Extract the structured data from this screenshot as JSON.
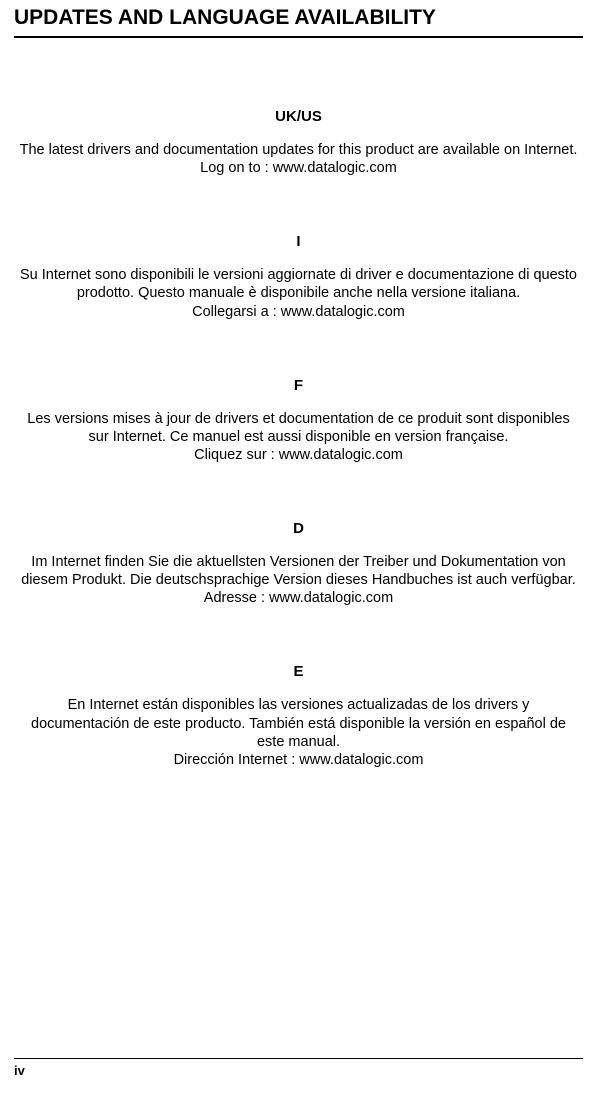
{
  "page": {
    "title": "UPDATES AND LANGUAGE AVAILABILITY",
    "number": "iv"
  },
  "sections": [
    {
      "code": "UK/US",
      "text": "The latest drivers and documentation updates for this product are available on Internet.",
      "action": "Log on to : www.datalogic.com"
    },
    {
      "code": "I",
      "text": "Su Internet sono disponibili le versioni aggiornate di driver e documentazione di questo prodotto. Questo manuale è disponibile anche nella versione italiana.",
      "action": "Collegarsi a : www.datalogic.com"
    },
    {
      "code": "F",
      "text": "Les versions mises à jour de drivers et documentation de ce produit sont disponibles sur Internet. Ce manuel est aussi disponible en version française.",
      "action": "Cliquez sur : www.datalogic.com"
    },
    {
      "code": "D",
      "text": "Im Internet finden Sie die aktuellsten Versionen der Treiber und Dokumentation von diesem Produkt. Die deutschsprachige Version dieses Handbuches ist auch verfügbar.",
      "action": "Adresse : www.datalogic.com"
    },
    {
      "code": "E",
      "text": "En Internet están disponibles las versiones actualizadas de los drivers y documentación de este producto. También está disponible la versión en español de este manual.",
      "action": "Dirección Internet : www.datalogic.com"
    }
  ]
}
